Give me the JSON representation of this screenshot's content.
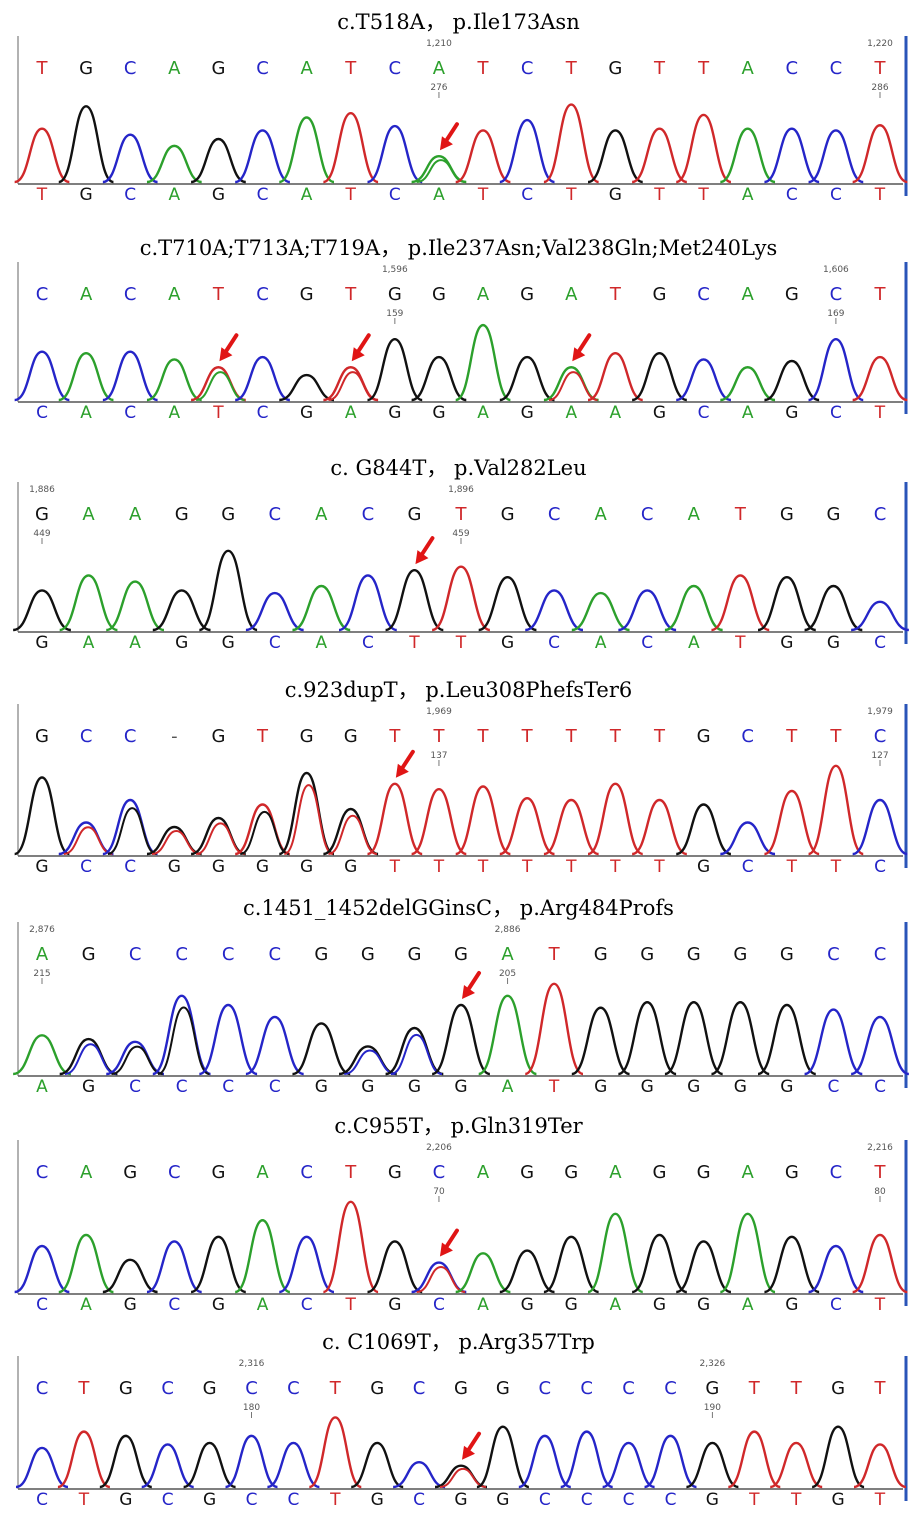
{
  "colors": {
    "A": "#2ca02c",
    "C": "#2525c8",
    "G": "#111111",
    "T": "#d0282a",
    "arrow": "#e01515"
  },
  "panels": [
    {
      "caption": "c.T518A，  p.Ile173Asn",
      "called": "TGCAGCATCATCTGTTACCT",
      "ref": "TGCAGCATCATCTGTTACCT",
      "marks": [
        {
          "index": 9,
          "top": "1,210",
          "bottom": "276"
        },
        {
          "index": 19,
          "top": "1,220",
          "bottom": "286"
        }
      ],
      "arrows": [
        9
      ],
      "hets": [
        {
          "index": 9,
          "alt": "A"
        }
      ],
      "heights": [
        0.62,
        0.88,
        0.55,
        0.42,
        0.5,
        0.6,
        0.75,
        0.8,
        0.65,
        0.3,
        0.6,
        0.72,
        0.9,
        0.6,
        0.62,
        0.78,
        0.62,
        0.62,
        0.6,
        0.66
      ]
    },
    {
      "caption": "c.T710A;T713A;T719A，  p.Ile237Asn;Val238Gln;Met240Lys",
      "called": "CACATCGTGGAGATGCAGCT",
      "ref": "CACATCGAGGAGAAGCAGCT",
      "marks": [
        {
          "index": 8,
          "top": "1,596",
          "bottom": "159"
        },
        {
          "index": 18,
          "top": "1,606",
          "bottom": "169"
        }
      ],
      "arrows": [
        4,
        7,
        12
      ],
      "hets": [
        {
          "index": 4,
          "alt": "A"
        },
        {
          "index": 7,
          "alt": "T"
        },
        {
          "index": 12,
          "alt": "T"
        }
      ],
      "heights": [
        0.62,
        0.6,
        0.62,
        0.52,
        0.42,
        0.55,
        0.32,
        0.42,
        0.78,
        0.55,
        0.96,
        0.55,
        0.42,
        0.6,
        0.6,
        0.52,
        0.42,
        0.5,
        0.78,
        0.55
      ]
    },
    {
      "caption": "c. G844T，  p.Val282Leu",
      "called": "GAAGGCACGTGCACATGGC",
      "ref": "GAAGGCACTTGCACATGGC",
      "marks": [
        {
          "index": 0,
          "top": "1,886",
          "bottom": "449"
        },
        {
          "index": 9,
          "top": "1,896",
          "bottom": "459"
        }
      ],
      "arrows": [
        8
      ],
      "hets": [],
      "heights": [
        0.45,
        0.62,
        0.55,
        0.45,
        0.9,
        0.42,
        0.5,
        0.62,
        0.68,
        0.72,
        0.6,
        0.45,
        0.42,
        0.45,
        0.5,
        0.62,
        0.6,
        0.5,
        0.32
      ]
    },
    {
      "caption": "c.923dupT，  p.Leu308PhefsTer6",
      "called": "GCC-GTGGTTTTTTTGCTTC",
      "ref": "GCCGGGGGTTTTTTTGCTTC",
      "marks": [
        {
          "index": 9,
          "top": "1,969",
          "bottom": "137"
        },
        {
          "index": 19,
          "top": "1,979",
          "bottom": "127"
        }
      ],
      "arrows": [
        8
      ],
      "hets": [
        {
          "index": 1,
          "alt": "T"
        },
        {
          "index": 2,
          "alt": "G"
        },
        {
          "index": 3,
          "alt": "T"
        },
        {
          "index": 4,
          "alt": "T"
        },
        {
          "index": 5,
          "alt": "G"
        },
        {
          "index": 6,
          "alt": "T"
        },
        {
          "index": 7,
          "alt": "T"
        }
      ],
      "heights": [
        0.85,
        0.35,
        0.6,
        0.3,
        0.4,
        0.55,
        0.9,
        0.5,
        0.78,
        0.72,
        0.75,
        0.62,
        0.6,
        0.78,
        0.6,
        0.55,
        0.35,
        0.7,
        0.98,
        0.6
      ]
    },
    {
      "caption": "c.1451_1452delGGinsC，  p.Arg484Profs",
      "called": "AGCCCCGGGGATGGGGGCC",
      "ref": "AGCCCCGGGGATGGGGGCC",
      "marks": [
        {
          "index": 0,
          "top": "2,876",
          "bottom": "215"
        },
        {
          "index": 10,
          "top": "2,886",
          "bottom": "205"
        }
      ],
      "arrows": [
        9
      ],
      "hets": [
        {
          "index": 1,
          "alt": "C"
        },
        {
          "index": 2,
          "alt": "G"
        },
        {
          "index": 3,
          "alt": "G"
        },
        {
          "index": 7,
          "alt": "C"
        },
        {
          "index": 8,
          "alt": "C"
        }
      ],
      "heights": [
        0.42,
        0.38,
        0.35,
        0.85,
        0.75,
        0.62,
        0.55,
        0.3,
        0.5,
        0.75,
        0.85,
        0.98,
        0.72,
        0.78,
        0.78,
        0.78,
        0.75,
        0.7,
        0.62
      ]
    },
    {
      "caption": "c.C955T，  p.Gln319Ter",
      "called": "CAGCGACTGCAGGAGGAGCT",
      "ref": "CAGCGACTGCAGGAGGAGCT",
      "marks": [
        {
          "index": 9,
          "top": "2,206",
          "bottom": "70"
        },
        {
          "index": 19,
          "top": "2,216",
          "bottom": "80"
        }
      ],
      "arrows": [
        9
      ],
      "hets": [
        {
          "index": 9,
          "alt": "T"
        }
      ],
      "heights": [
        0.5,
        0.62,
        0.35,
        0.55,
        0.6,
        0.78,
        0.6,
        0.98,
        0.55,
        0.32,
        0.42,
        0.45,
        0.6,
        0.85,
        0.62,
        0.55,
        0.85,
        0.6,
        0.5,
        0.62
      ]
    },
    {
      "caption": "c. C1069T，  p.Arg357Trp",
      "called": "CTGCGCCTGCGGCCCCGTTGT",
      "ref": "CTGCGCCTGCGGCCCCGTTGT",
      "marks": [
        {
          "index": 5,
          "top": "2,316",
          "bottom": "180"
        },
        {
          "index": 16,
          "top": "2,326",
          "bottom": "190"
        }
      ],
      "arrows": [
        10
      ],
      "hets": [
        {
          "index": 10,
          "alt": "T"
        }
      ],
      "heights": [
        0.55,
        0.78,
        0.72,
        0.6,
        0.62,
        0.72,
        0.62,
        0.98,
        0.62,
        0.35,
        0.3,
        0.85,
        0.72,
        0.78,
        0.62,
        0.72,
        0.62,
        0.78,
        0.62,
        0.85,
        0.6
      ]
    }
  ]
}
